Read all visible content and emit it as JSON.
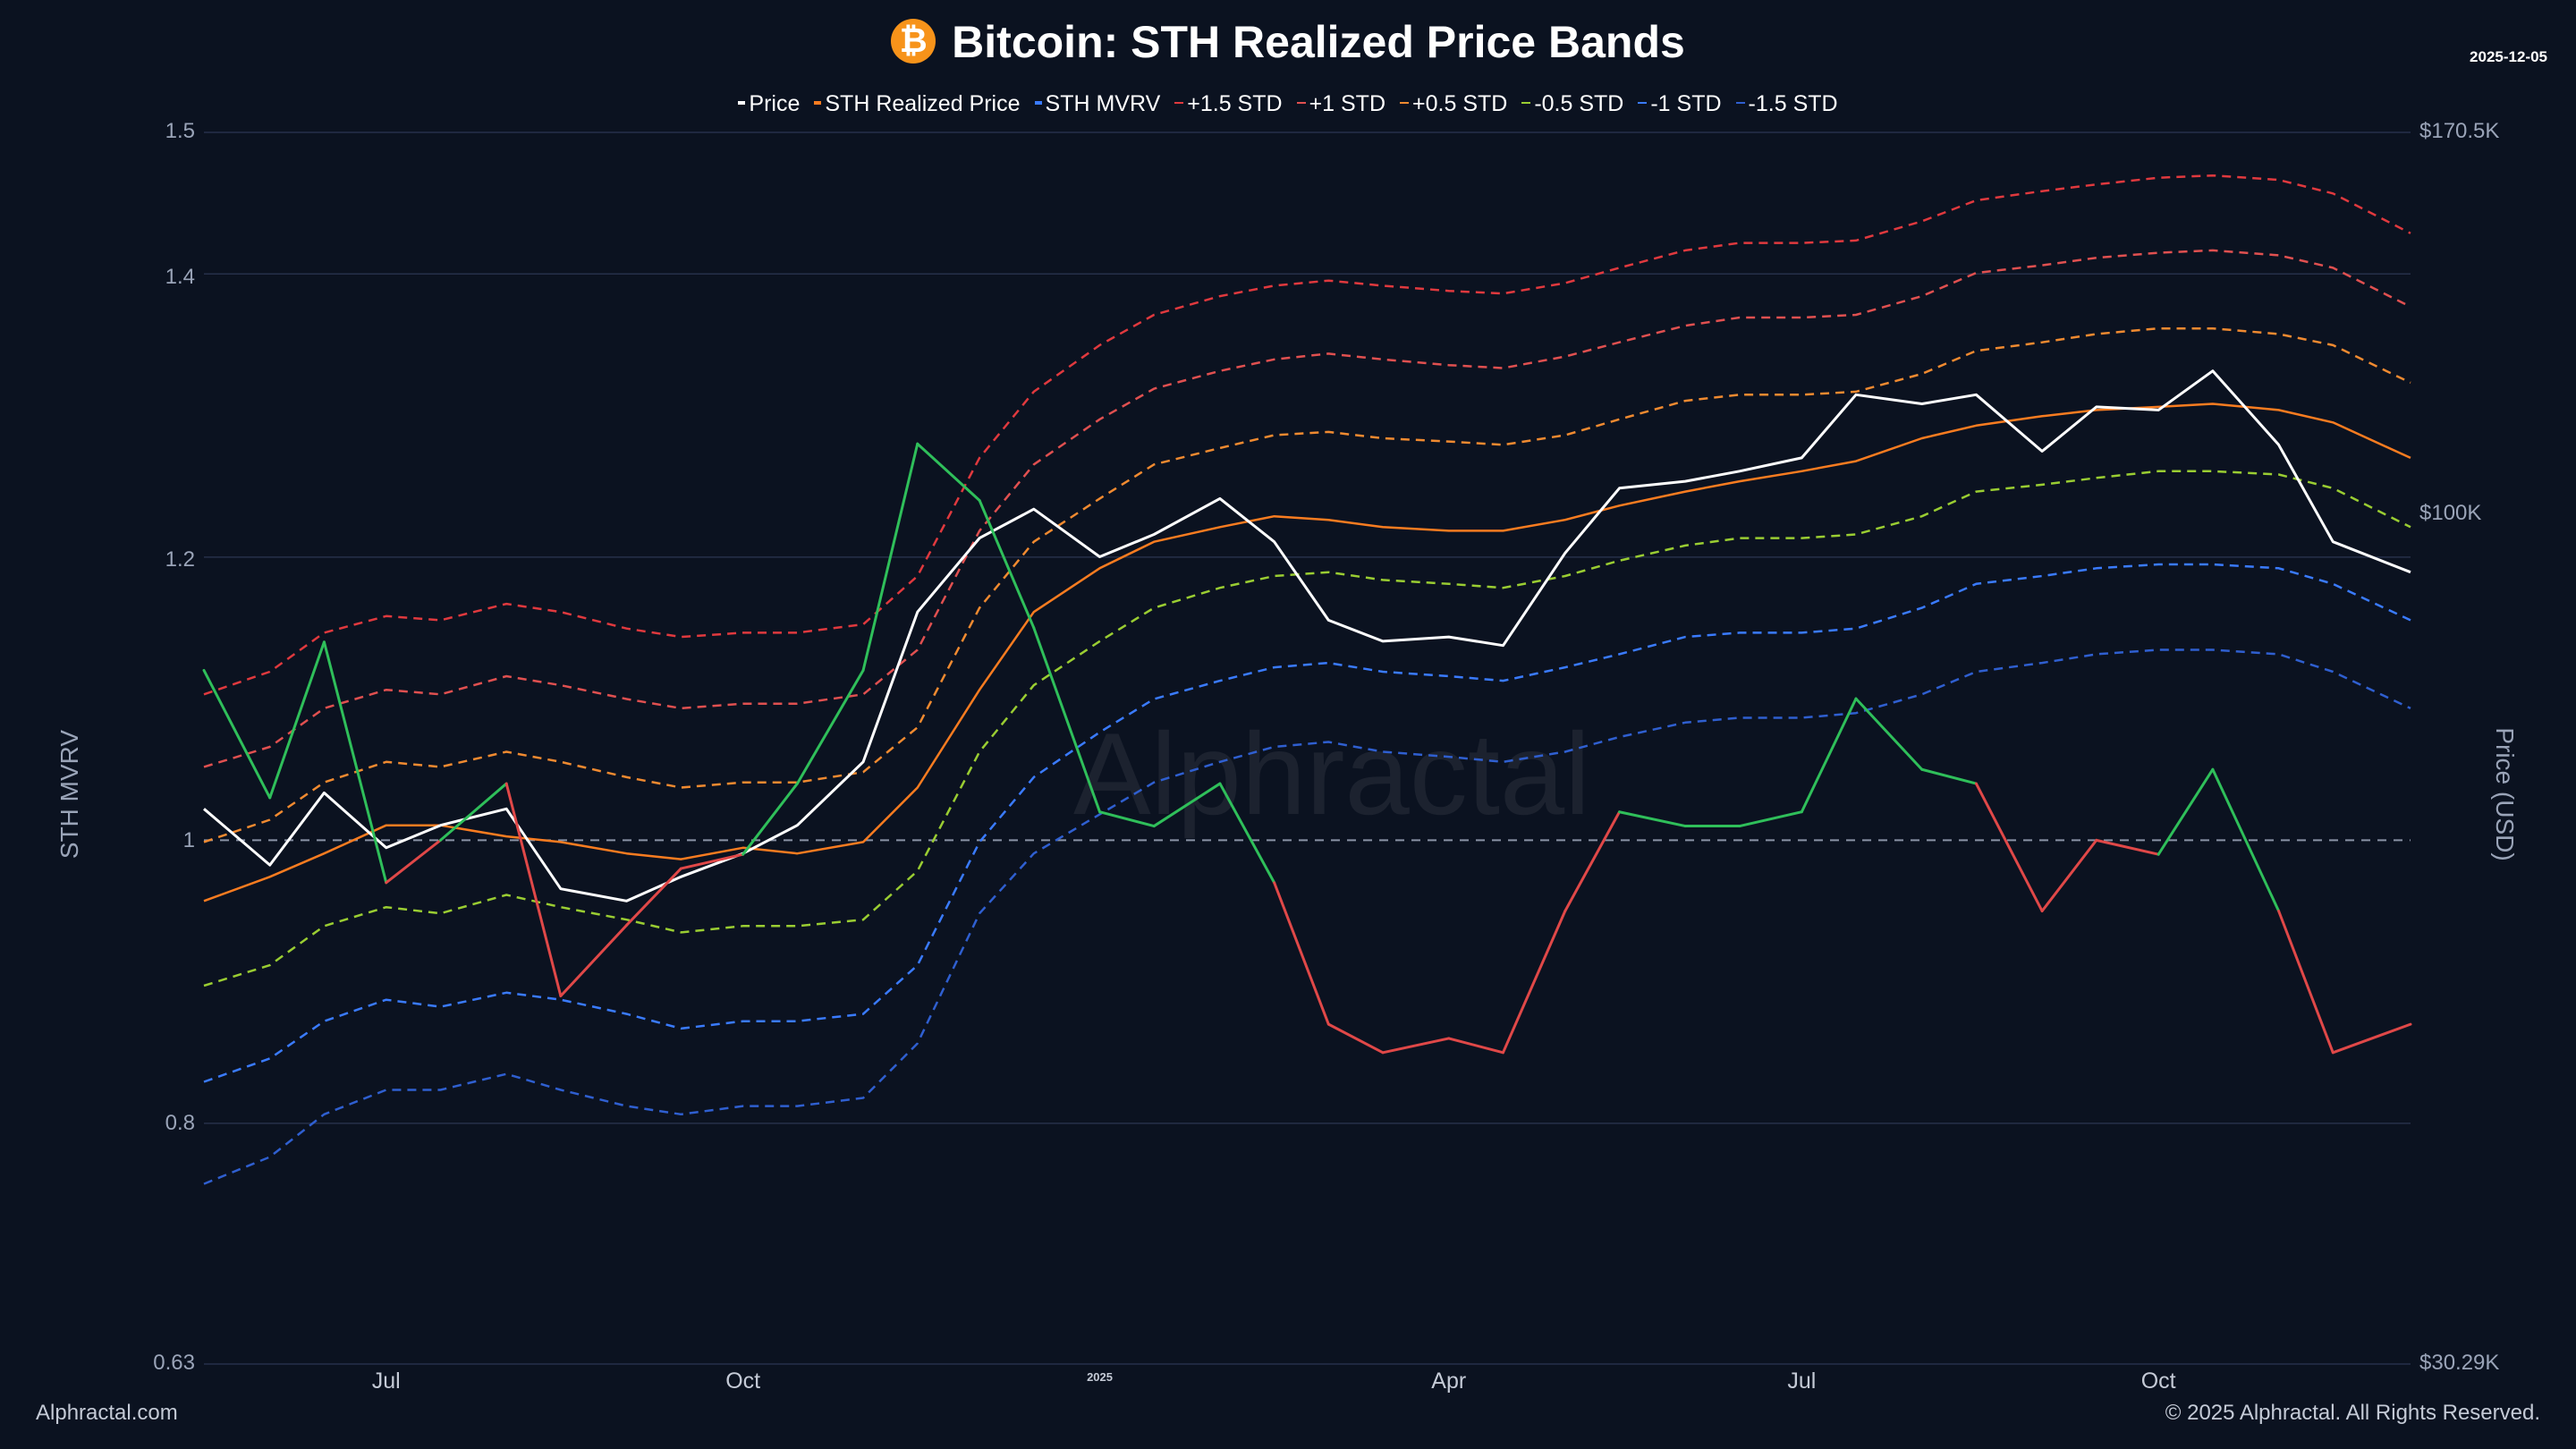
{
  "header": {
    "title": "Bitcoin: STH Realized Price Bands",
    "logo_icon": "bitcoin-icon",
    "date": "2025-12-05"
  },
  "legend": [
    {
      "label": "Price",
      "color": "#ffffff",
      "style": "solid"
    },
    {
      "label": "STH Realized Price",
      "color": "#f97c20",
      "style": "solid"
    },
    {
      "label": "STH MVRV",
      "color": "#3a7bff",
      "style": "solid"
    },
    {
      "label": "+1.5 STD",
      "color": "#e0393e",
      "style": "dashed"
    },
    {
      "label": "+1 STD",
      "color": "#e05050",
      "style": "dashed"
    },
    {
      "label": "+0.5 STD",
      "color": "#f08a30",
      "style": "dashed"
    },
    {
      "label": "-0.5 STD",
      "color": "#9acd32",
      "style": "dashed"
    },
    {
      "label": "-1 STD",
      "color": "#3a7bff",
      "style": "dashed"
    },
    {
      "label": "-1.5 STD",
      "color": "#2f5fd0",
      "style": "dashed"
    }
  ],
  "axes": {
    "left_title": "STH MVRV",
    "right_title": "Price (USD)",
    "left_ticks": [
      "1.5",
      "1.4",
      "1.2",
      "1",
      "0.8",
      "0.63"
    ],
    "right_ticks": [
      "$170.5K",
      "$100K",
      "$30.29K"
    ],
    "x_ticks": [
      "Jul",
      "Oct",
      "2025",
      "Apr",
      "Jul",
      "Oct"
    ]
  },
  "footer": {
    "left": "Alphractal.com",
    "right": "© 2025 Alphractal. All Rights Reserved."
  },
  "watermark": "Alphractal",
  "chart_data": {
    "type": "line",
    "title": "Bitcoin: STH Realized Price Bands",
    "xlabel": "",
    "ylabel": "STH MVRV",
    "y2label": "Price (USD)",
    "ylim": [
      0.63,
      1.5
    ],
    "y2lim": [
      30290,
      170500
    ],
    "y2scale": "log",
    "x_range": [
      "2024-05-15",
      "2025-12-05"
    ],
    "mvrv_baseline": 1.0,
    "x": [
      "2024-05-15",
      "2024-06-01",
      "2024-06-15",
      "2024-07-01",
      "2024-07-15",
      "2024-08-01",
      "2024-08-15",
      "2024-09-01",
      "2024-09-15",
      "2024-10-01",
      "2024-10-15",
      "2024-11-01",
      "2024-11-15",
      "2024-12-01",
      "2024-12-15",
      "2025-01-01",
      "2025-01-15",
      "2025-02-01",
      "2025-02-15",
      "2025-03-01",
      "2025-03-15",
      "2025-04-01",
      "2025-04-15",
      "2025-05-01",
      "2025-05-15",
      "2025-06-01",
      "2025-06-15",
      "2025-07-01",
      "2025-07-15",
      "2025-08-01",
      "2025-08-15",
      "2025-09-01",
      "2025-09-15",
      "2025-10-01",
      "2025-10-15",
      "2025-11-01",
      "2025-11-15",
      "2025-12-05"
    ],
    "series": [
      {
        "name": "-1.5 STD",
        "axis": "price",
        "values": [
          39000,
          40500,
          43000,
          44500,
          44500,
          45500,
          44500,
          43500,
          43000,
          43500,
          43500,
          44000,
          47500,
          57000,
          62000,
          65500,
          68500,
          70500,
          72000,
          72500,
          71500,
          71000,
          70500,
          71500,
          73000,
          74500,
          75000,
          75000,
          75500,
          77500,
          80000,
          81000,
          82000,
          82500,
          82500,
          82000,
          80000,
          76000
        ]
      },
      {
        "name": "-1 STD",
        "axis": "price",
        "values": [
          45000,
          46500,
          49000,
          50500,
          50000,
          51000,
          50500,
          49500,
          48500,
          49000,
          49000,
          49500,
          53000,
          63000,
          69000,
          73500,
          77000,
          79000,
          80500,
          81000,
          80000,
          79500,
          79000,
          80500,
          82000,
          84000,
          84500,
          84500,
          85000,
          87500,
          90500,
          91500,
          92500,
          93000,
          93000,
          92500,
          90500,
          86000
        ]
      },
      {
        "name": "-0.5 STD",
        "axis": "price",
        "values": [
          51500,
          53000,
          56000,
          57500,
          57000,
          58500,
          57500,
          56500,
          55500,
          56000,
          56000,
          56500,
          60500,
          71500,
          78500,
          83500,
          87500,
          90000,
          91500,
          92000,
          91000,
          90500,
          90000,
          91500,
          93500,
          95500,
          96500,
          96500,
          97000,
          99500,
          103000,
          104000,
          105000,
          106000,
          106000,
          105500,
          103500,
          98000
        ]
      },
      {
        "name": "STH Realized Price",
        "axis": "price",
        "values": [
          58000,
          60000,
          62000,
          64500,
          64500,
          63500,
          63000,
          62000,
          61500,
          62500,
          62000,
          63000,
          68000,
          78000,
          87000,
          92500,
          96000,
          98000,
          99500,
          99000,
          98000,
          97500,
          97500,
          99000,
          101000,
          103000,
          104500,
          106000,
          107500,
          111000,
          113000,
          114500,
          115500,
          116000,
          116500,
          115500,
          113500,
          108000
        ]
      },
      {
        "name": "+0.5 STD",
        "axis": "price",
        "values": [
          63000,
          65000,
          68500,
          70500,
          70000,
          71500,
          70500,
          69000,
          68000,
          68500,
          68500,
          69500,
          74000,
          87500,
          96000,
          102000,
          107000,
          109500,
          111500,
          112000,
          111000,
          110500,
          110000,
          111500,
          114000,
          117000,
          118000,
          118000,
          118500,
          121500,
          125500,
          127000,
          128500,
          129500,
          129500,
          128500,
          126500,
          120000
        ]
      },
      {
        "name": "+1 STD",
        "axis": "price",
        "values": [
          70000,
          72000,
          76000,
          78000,
          77500,
          79500,
          78500,
          77000,
          76000,
          76500,
          76500,
          77500,
          82500,
          97500,
          107000,
          114000,
          119000,
          122000,
          124000,
          125000,
          124000,
          123000,
          122500,
          124500,
          127000,
          130000,
          131500,
          131500,
          132000,
          135500,
          140000,
          141500,
          143000,
          144000,
          144500,
          143500,
          141000,
          133500
        ]
      },
      {
        "name": "+1.5 STD",
        "axis": "price",
        "values": [
          77500,
          80000,
          84500,
          86500,
          86000,
          88000,
          87000,
          85000,
          84000,
          84500,
          84500,
          85500,
          91500,
          108000,
          118500,
          126500,
          132000,
          135500,
          137500,
          138500,
          137500,
          136500,
          136000,
          138000,
          141000,
          144500,
          146000,
          146000,
          146500,
          150500,
          155000,
          157000,
          158500,
          160000,
          160500,
          159500,
          156500,
          148000
        ]
      },
      {
        "name": "Price",
        "axis": "price",
        "values": [
          66000,
          61000,
          67500,
          62500,
          64500,
          66000,
          59000,
          58000,
          60000,
          62000,
          64500,
          70500,
          87000,
          96500,
          100500,
          94000,
          97000,
          102000,
          96000,
          86000,
          83500,
          84000,
          83000,
          94500,
          103500,
          104500,
          106000,
          108000,
          118000,
          116500,
          118000,
          109000,
          116000,
          115500,
          122000,
          110000,
          96000,
          92000
        ]
      },
      {
        "name": "STH MVRV",
        "axis": "mvrv",
        "values": [
          1.12,
          1.03,
          1.14,
          0.97,
          1.0,
          1.04,
          0.89,
          0.94,
          0.98,
          0.99,
          1.04,
          1.12,
          1.28,
          1.24,
          1.15,
          1.02,
          1.01,
          1.04,
          0.97,
          0.87,
          0.85,
          0.86,
          0.85,
          0.95,
          1.02,
          1.01,
          1.01,
          1.02,
          1.1,
          1.05,
          1.04,
          0.95,
          1.0,
          0.99,
          1.05,
          0.95,
          0.85,
          0.87
        ]
      }
    ]
  }
}
